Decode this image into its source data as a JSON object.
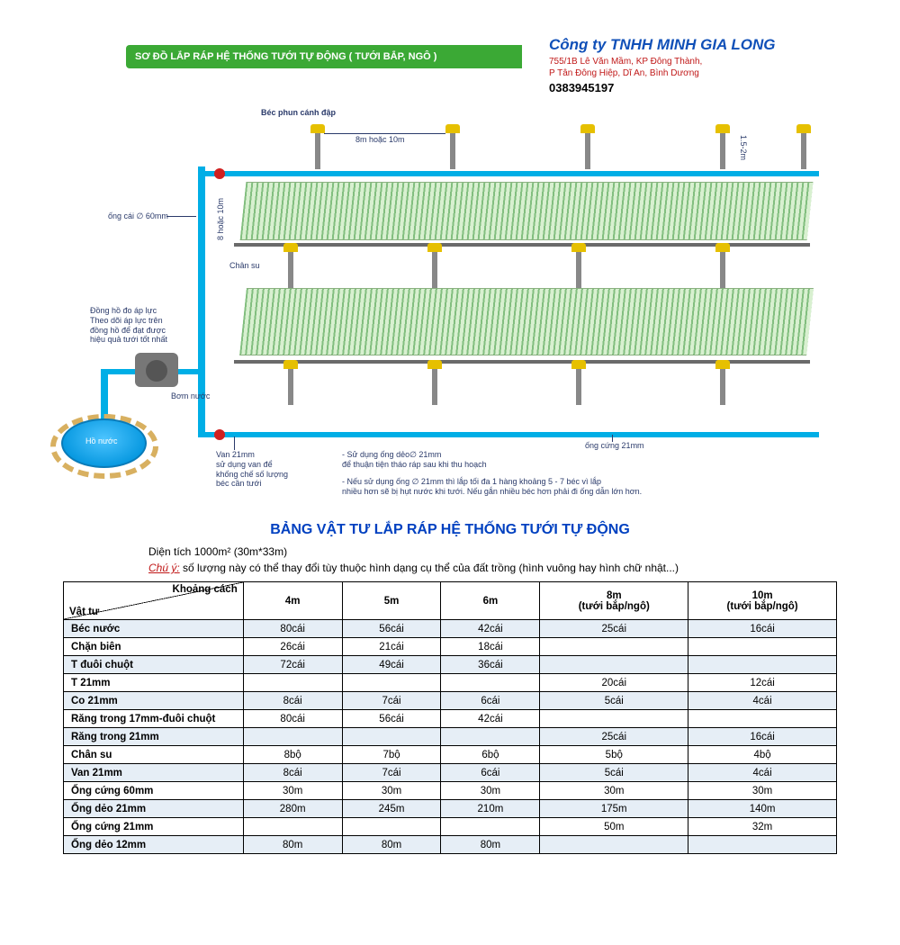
{
  "header": {
    "green_band": "SƠ ĐỒ LẮP RÁP HỆ THỐNG TƯỚI TỰ ĐỘNG ( TƯỚI BẮP, NGÔ )",
    "company_name": "Công ty TNHH MINH GIA LONG",
    "company_addr": "755/1B Lê Văn Mầm, KP Đông Thành,\nP Tân Đông Hiệp, Dĩ An, Bình Dương",
    "company_phone": "0383945197"
  },
  "diagram": {
    "label_sprinkler": "Béc phun cánh đập",
    "label_8_10m": "8m hoặc 10m",
    "label_1_5_2m": "1.5-2m",
    "label_main_pipe": "ống cái ∅ 60mm",
    "label_8_or_10m_v": "8 hoặc 10m",
    "label_chan_su": "Chân su",
    "label_gauge": "Đồng hồ đo áp lực\nTheo dõi áp lực trên\nđồng hồ để đạt được\nhiệu quả tưới tốt nhất",
    "label_pump": "Bơm nước",
    "label_reservoir": "Hồ nước",
    "label_valve": "Van 21mm\nsử dụng van để\nkhống chế số lượng\nbéc cần tưới",
    "label_flex_pipe": "- Sử dụng ống dẻo∅ 21mm\nđể thuận tiện tháo ráp sau khi thu hoạch",
    "label_flex_pipe2": "- Nếu sử dụng ống ∅ 21mm thì lắp tối đa 1 hàng khoảng 5 - 7 béc vì lắp\nnhiều hơn sẽ bị hụt nước khi tưới. Nếu gắn nhiều béc hơn phải đi ống dẫn lớn hơn.",
    "label_hard_pipe": "ống cứng 21mm"
  },
  "section": {
    "title": "BẢNG VẬT TƯ LẮP RÁP HỆ THỐNG TƯỚI TỰ ĐỘNG",
    "area": "Diện tích 1000m² (30m*33m)",
    "note_label": "Chú ý:",
    "note_text": "số lượng này có thể thay đổi tùy thuộc hình dạng cụ thể của đất trồng (hình vuông hay hình chữ nhật...)"
  },
  "table": {
    "corner_top": "Khoảng cách",
    "corner_bot": "Vật tư",
    "columns": [
      "4m",
      "5m",
      "6m",
      "8m\n(tưới bắp/ngô)",
      "10m\n(tưới bắp/ngô)"
    ],
    "rows": [
      {
        "label": "Béc nước",
        "cells": [
          "80cái",
          "56cái",
          "42cái",
          "25cái",
          "16cái"
        ],
        "alt": true
      },
      {
        "label": "Chặn biên",
        "cells": [
          "26cái",
          "21cái",
          "18cái",
          "",
          ""
        ],
        "alt": false
      },
      {
        "label": "T đuôi chuột",
        "cells": [
          "72cái",
          "49cái",
          "36cái",
          "",
          ""
        ],
        "alt": true
      },
      {
        "label": "T 21mm",
        "cells": [
          "",
          "",
          "",
          "20cái",
          "12cái"
        ],
        "alt": false
      },
      {
        "label": "Co 21mm",
        "cells": [
          "8cái",
          "7cái",
          "6cái",
          "5cái",
          "4cái"
        ],
        "alt": true
      },
      {
        "label": "Răng trong 17mm-đuôi chuột",
        "cells": [
          "80cái",
          "56cái",
          "42cái",
          "",
          ""
        ],
        "alt": false
      },
      {
        "label": "Răng trong 21mm",
        "cells": [
          "",
          "",
          "",
          "25cái",
          "16cái"
        ],
        "alt": true
      },
      {
        "label": "Chân su",
        "cells": [
          "8bộ",
          "7bộ",
          "6bộ",
          "5bộ",
          "4bộ"
        ],
        "alt": false
      },
      {
        "label": "Van 21mm",
        "cells": [
          "8cái",
          "7cái",
          "6cái",
          "5cái",
          "4cái"
        ],
        "alt": true
      },
      {
        "label": "Ống cứng 60mm",
        "cells": [
          "30m",
          "30m",
          "30m",
          "30m",
          "30m"
        ],
        "alt": false
      },
      {
        "label": "Ống dẻo 21mm",
        "cells": [
          "280m",
          "245m",
          "210m",
          "175m",
          "140m"
        ],
        "alt": true
      },
      {
        "label": "Ống cứng 21mm",
        "cells": [
          "",
          "",
          "",
          "50m",
          "32m"
        ],
        "alt": false
      },
      {
        "label": "Ống dẻo 12mm",
        "cells": [
          "80m",
          "80m",
          "80m",
          "",
          ""
        ],
        "alt": true
      }
    ]
  },
  "style": {
    "green": "#3ba935",
    "blue_pipe": "#00aee6",
    "dark_blue": "#0040c0",
    "red": "#c01818",
    "alt_row": "#e6eef6"
  }
}
